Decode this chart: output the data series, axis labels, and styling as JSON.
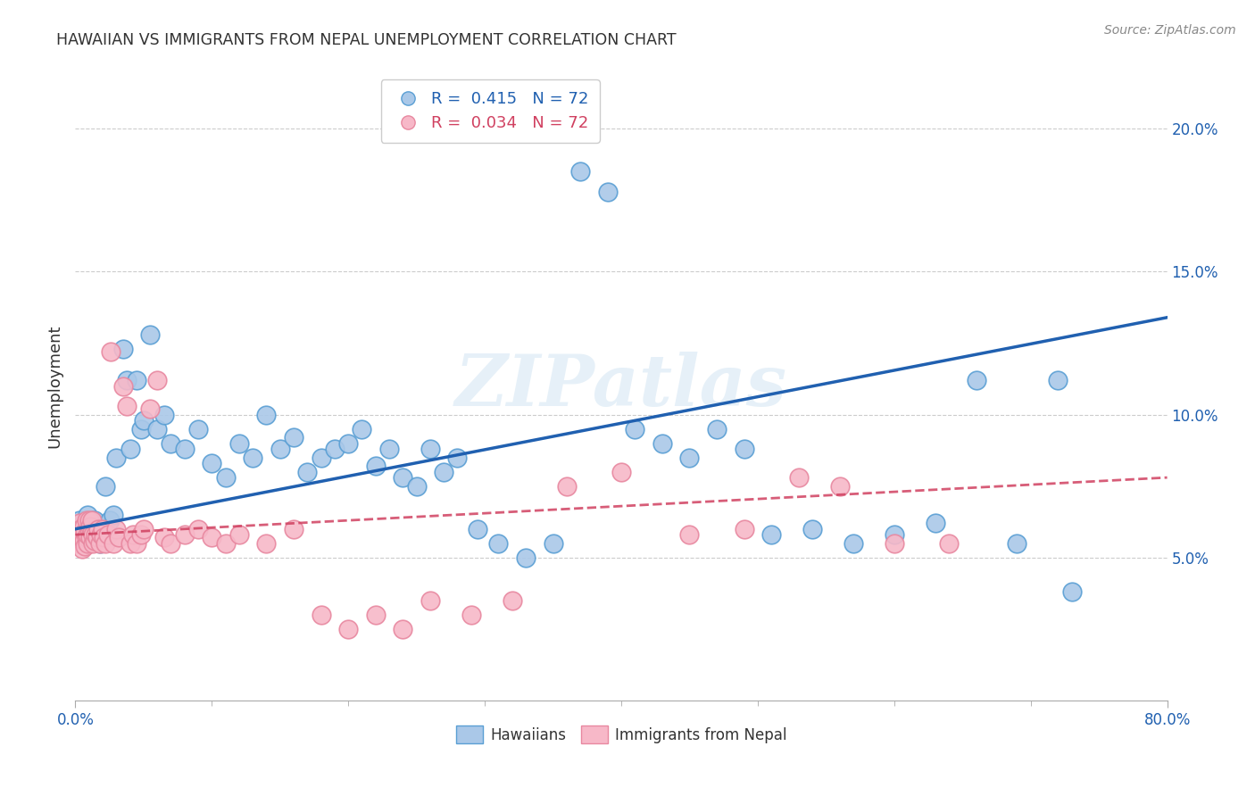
{
  "title": "HAWAIIAN VS IMMIGRANTS FROM NEPAL UNEMPLOYMENT CORRELATION CHART",
  "source": "Source: ZipAtlas.com",
  "ylabel": "Unemployment",
  "xlim": [
    0.0,
    0.8
  ],
  "ylim": [
    0.0,
    0.22
  ],
  "xticks_major": [
    0.0,
    0.8
  ],
  "xticks_minor": [
    0.1,
    0.2,
    0.3,
    0.4,
    0.5,
    0.6,
    0.7
  ],
  "xticklabels_major": [
    "0.0%",
    "80.0%"
  ],
  "yticks_right": [
    0.05,
    0.1,
    0.15,
    0.2
  ],
  "ytick_right_labels": [
    "5.0%",
    "10.0%",
    "15.0%",
    "20.0%"
  ],
  "blue_fill_color": "#aac8e8",
  "blue_edge_color": "#5a9fd4",
  "pink_fill_color": "#f7b8c8",
  "pink_edge_color": "#e888a0",
  "blue_line_color": "#2060b0",
  "pink_line_color": "#d04060",
  "blue_R": 0.415,
  "blue_N": 72,
  "pink_R": 0.034,
  "pink_N": 72,
  "watermark": "ZIPatlas",
  "legend_label_blue": "Hawaiians",
  "legend_label_pink": "Immigrants from Nepal",
  "hawaiians_x": [
    0.003,
    0.004,
    0.005,
    0.006,
    0.007,
    0.008,
    0.009,
    0.01,
    0.011,
    0.012,
    0.013,
    0.014,
    0.015,
    0.016,
    0.018,
    0.019,
    0.02,
    0.022,
    0.025,
    0.028,
    0.03,
    0.035,
    0.038,
    0.04,
    0.045,
    0.048,
    0.05,
    0.055,
    0.06,
    0.065,
    0.07,
    0.08,
    0.09,
    0.1,
    0.11,
    0.12,
    0.13,
    0.14,
    0.15,
    0.16,
    0.17,
    0.18,
    0.19,
    0.2,
    0.21,
    0.22,
    0.23,
    0.24,
    0.25,
    0.26,
    0.27,
    0.28,
    0.295,
    0.31,
    0.33,
    0.35,
    0.37,
    0.39,
    0.41,
    0.43,
    0.45,
    0.47,
    0.49,
    0.51,
    0.54,
    0.57,
    0.6,
    0.63,
    0.66,
    0.69,
    0.72,
    0.73
  ],
  "hawaiians_y": [
    0.063,
    0.058,
    0.06,
    0.055,
    0.057,
    0.062,
    0.065,
    0.058,
    0.06,
    0.059,
    0.061,
    0.063,
    0.057,
    0.06,
    0.055,
    0.058,
    0.06,
    0.075,
    0.063,
    0.065,
    0.085,
    0.123,
    0.112,
    0.088,
    0.112,
    0.095,
    0.098,
    0.128,
    0.095,
    0.1,
    0.09,
    0.088,
    0.095,
    0.083,
    0.078,
    0.09,
    0.085,
    0.1,
    0.088,
    0.092,
    0.08,
    0.085,
    0.088,
    0.09,
    0.095,
    0.082,
    0.088,
    0.078,
    0.075,
    0.088,
    0.08,
    0.085,
    0.06,
    0.055,
    0.05,
    0.055,
    0.185,
    0.178,
    0.095,
    0.09,
    0.085,
    0.095,
    0.088,
    0.058,
    0.06,
    0.055,
    0.058,
    0.062,
    0.112,
    0.055,
    0.112,
    0.038
  ],
  "nepal_x": [
    0.001,
    0.002,
    0.002,
    0.003,
    0.003,
    0.004,
    0.004,
    0.005,
    0.005,
    0.006,
    0.006,
    0.007,
    0.007,
    0.008,
    0.008,
    0.009,
    0.009,
    0.01,
    0.01,
    0.011,
    0.011,
    0.012,
    0.012,
    0.013,
    0.013,
    0.014,
    0.015,
    0.016,
    0.017,
    0.018,
    0.019,
    0.02,
    0.021,
    0.022,
    0.024,
    0.026,
    0.028,
    0.03,
    0.032,
    0.035,
    0.038,
    0.04,
    0.042,
    0.045,
    0.048,
    0.05,
    0.055,
    0.06,
    0.065,
    0.07,
    0.08,
    0.09,
    0.1,
    0.11,
    0.12,
    0.14,
    0.16,
    0.18,
    0.2,
    0.22,
    0.24,
    0.26,
    0.29,
    0.32,
    0.36,
    0.4,
    0.45,
    0.49,
    0.53,
    0.56,
    0.6,
    0.64
  ],
  "nepal_y": [
    0.058,
    0.055,
    0.06,
    0.057,
    0.062,
    0.055,
    0.06,
    0.053,
    0.058,
    0.056,
    0.061,
    0.054,
    0.059,
    0.057,
    0.063,
    0.055,
    0.058,
    0.06,
    0.063,
    0.057,
    0.061,
    0.059,
    0.063,
    0.055,
    0.058,
    0.056,
    0.058,
    0.057,
    0.06,
    0.055,
    0.058,
    0.06,
    0.057,
    0.055,
    0.058,
    0.122,
    0.055,
    0.06,
    0.057,
    0.11,
    0.103,
    0.055,
    0.058,
    0.055,
    0.058,
    0.06,
    0.102,
    0.112,
    0.057,
    0.055,
    0.058,
    0.06,
    0.057,
    0.055,
    0.058,
    0.055,
    0.06,
    0.03,
    0.025,
    0.03,
    0.025,
    0.035,
    0.03,
    0.035,
    0.075,
    0.08,
    0.058,
    0.06,
    0.078,
    0.075,
    0.055,
    0.055
  ],
  "blue_line_x0": 0.0,
  "blue_line_y0": 0.06,
  "blue_line_x1": 0.8,
  "blue_line_y1": 0.134,
  "pink_line_x0": 0.0,
  "pink_line_y0": 0.058,
  "pink_line_x1": 0.8,
  "pink_line_y1": 0.078
}
